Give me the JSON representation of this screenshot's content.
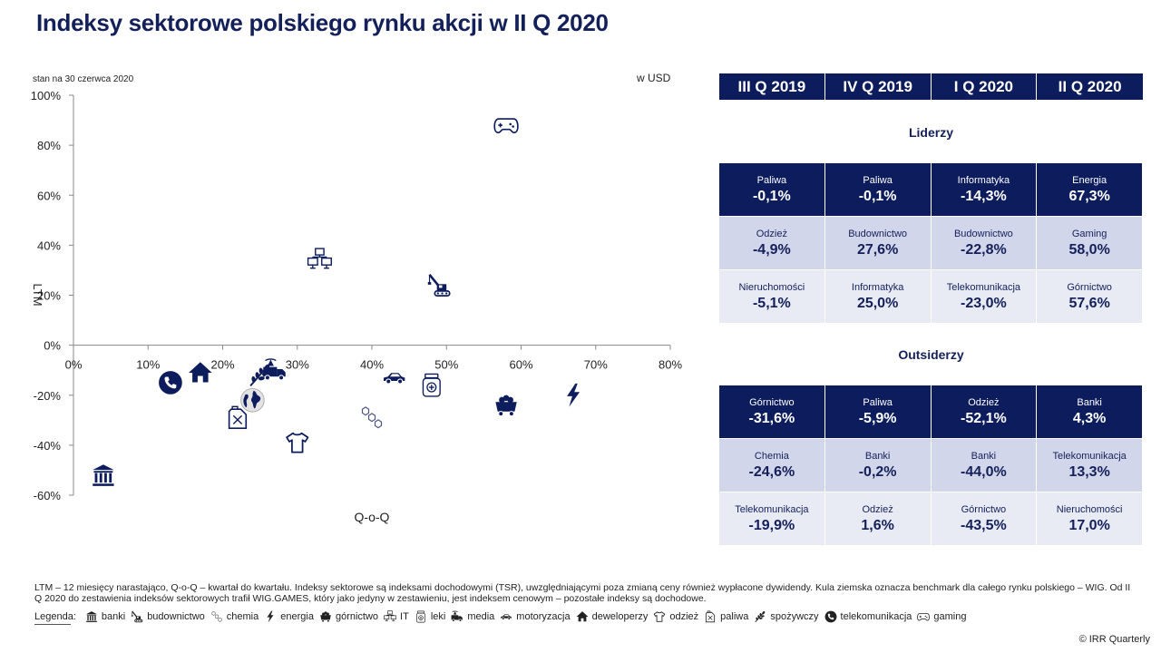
{
  "title": "Indeksy sektorowe polskiego rynku akcji  w II Q 2020",
  "as_of": "stan na 30 czerwca 2020",
  "unit": "w USD",
  "chart_data": {
    "type": "scatter",
    "xlabel": "Q-o-Q",
    "ylabel": "LTM",
    "xlim": [
      0,
      80
    ],
    "ylim": [
      -60,
      100
    ],
    "x_ticks": [
      "0%",
      "10%",
      "20%",
      "30%",
      "40%",
      "50%",
      "60%",
      "70%",
      "80%"
    ],
    "y_ticks": [
      "100%",
      "80%",
      "60%",
      "40%",
      "20%",
      "0%",
      "-20%",
      "-40%",
      "-60%"
    ],
    "points": [
      {
        "sector": "banki",
        "icon": "bank-icon",
        "x": 4,
        "y": -52
      },
      {
        "sector": "telekomunikacja",
        "icon": "phone-icon",
        "x": 13,
        "y": -15
      },
      {
        "sector": "deweloperzy",
        "icon": "house-icon",
        "x": 17,
        "y": -11
      },
      {
        "sector": "paliwa",
        "icon": "fuel-can-icon",
        "x": 22,
        "y": -29
      },
      {
        "sector": "WIG",
        "icon": "globe-icon",
        "x": 24,
        "y": -22
      },
      {
        "sector": "spożywczy",
        "icon": "wheat-icon",
        "x": 25,
        "y": -12
      },
      {
        "sector": "media",
        "icon": "media-truck-icon",
        "x": 27,
        "y": -10
      },
      {
        "sector": "odzież",
        "icon": "shirt-icon",
        "x": 30,
        "y": -39
      },
      {
        "sector": "IT",
        "icon": "computers-icon",
        "x": 33,
        "y": 34
      },
      {
        "sector": "chemia",
        "icon": "molecule-icon",
        "x": 40,
        "y": -29
      },
      {
        "sector": "motoryzacja",
        "icon": "car-icon",
        "x": 43,
        "y": -13
      },
      {
        "sector": "leki",
        "icon": "pill-bottle-icon",
        "x": 48,
        "y": -16
      },
      {
        "sector": "budownictwo",
        "icon": "crane-icon",
        "x": 49,
        "y": 24
      },
      {
        "sector": "gaming",
        "icon": "gamepad-icon",
        "x": 58,
        "y": 88
      },
      {
        "sector": "górnictwo",
        "icon": "mine-cart-icon",
        "x": 58,
        "y": -24
      },
      {
        "sector": "energia",
        "icon": "lightning-icon",
        "x": 67,
        "y": -20
      }
    ]
  },
  "table": {
    "headers": [
      "III Q 2019",
      "IV Q 2019",
      "I Q 2020",
      "II Q 2020"
    ],
    "leaders_title": "Liderzy",
    "leaders": [
      [
        {
          "label": "Paliwa",
          "value": "-0,1%"
        },
        {
          "label": "Paliwa",
          "value": "-0,1%"
        },
        {
          "label": "Informatyka",
          "value": "-14,3%"
        },
        {
          "label": "Energia",
          "value": "67,3%"
        }
      ],
      [
        {
          "label": "Odzież",
          "value": "-4,9%"
        },
        {
          "label": "Budownictwo",
          "value": "27,6%"
        },
        {
          "label": "Budownictwo",
          "value": "-22,8%"
        },
        {
          "label": "Gaming",
          "value": "58,0%"
        }
      ],
      [
        {
          "label": "Nieruchomości",
          "value": "-5,1%"
        },
        {
          "label": "Informatyka",
          "value": "25,0%"
        },
        {
          "label": "Telekomunikacja",
          "value": "-23,0%"
        },
        {
          "label": "Górnictwo",
          "value": "57,6%"
        }
      ]
    ],
    "outsiders_title": "Outsiderzy",
    "outsiders": [
      [
        {
          "label": "Górnictwo",
          "value": "-31,6%"
        },
        {
          "label": "Paliwa",
          "value": "-5,9%"
        },
        {
          "label": "Odzież",
          "value": "-52,1%"
        },
        {
          "label": "Banki",
          "value": "4,3%"
        }
      ],
      [
        {
          "label": "Chemia",
          "value": "-24,6%"
        },
        {
          "label": "Banki",
          "value": "-0,2%"
        },
        {
          "label": "Banki",
          "value": "-44,0%"
        },
        {
          "label": "Telekomunikacja",
          "value": "13,3%"
        }
      ],
      [
        {
          "label": "Telekomunikacja",
          "value": "-19,9%"
        },
        {
          "label": "Odzież",
          "value": "1,6%"
        },
        {
          "label": "Górnictwo",
          "value": "-43,5%"
        },
        {
          "label": "Nieruchomości",
          "value": "17,0%"
        }
      ]
    ]
  },
  "footnote": "LTM – 12 miesięcy narastająco, Q-o-Q – kwartał do kwartału. Indeksy sektorowe są indeksami dochodowymi (TSR), uwzględniającymi poza zmianą ceny również wypłacone dywidendy. Kula ziemska oznacza benchmark dla całego rynku polskiego – WIG. Od II Q 2020 do zestawienia indeksów sektorowych trafił WIG.GAMES,  który  jako jedyny w zestawieniu, jest indeksem cenowym – pozostałe indeksy są dochodowe.",
  "legend": {
    "label": "Legenda:",
    "items": [
      {
        "icon": "bank-icon",
        "label": "banki"
      },
      {
        "icon": "crane-icon",
        "label": "budownictwo"
      },
      {
        "icon": "molecule-icon",
        "label": "chemia"
      },
      {
        "icon": "lightning-icon",
        "label": "energia"
      },
      {
        "icon": "mine-cart-icon",
        "label": "górnictwo"
      },
      {
        "icon": "computers-icon",
        "label": "IT"
      },
      {
        "icon": "pill-bottle-icon",
        "label": "leki"
      },
      {
        "icon": "media-truck-icon",
        "label": "media"
      },
      {
        "icon": "car-icon",
        "label": "motoryzacja"
      },
      {
        "icon": "house-icon",
        "label": "deweloperzy"
      },
      {
        "icon": "shirt-icon",
        "label": "odzież"
      },
      {
        "icon": "fuel-can-icon",
        "label": "paliwa"
      },
      {
        "icon": "wheat-icon",
        "label": "spożywczy"
      },
      {
        "icon": "phone-icon",
        "label": "telekomunikacja"
      },
      {
        "icon": "gamepad-icon",
        "label": "gaming"
      }
    ]
  },
  "copyright": "© IRR Quarterly",
  "colors": {
    "navy": "#0d1c5c",
    "row_mid": "#d2d6ea",
    "row_light": "#e8eaf4"
  }
}
